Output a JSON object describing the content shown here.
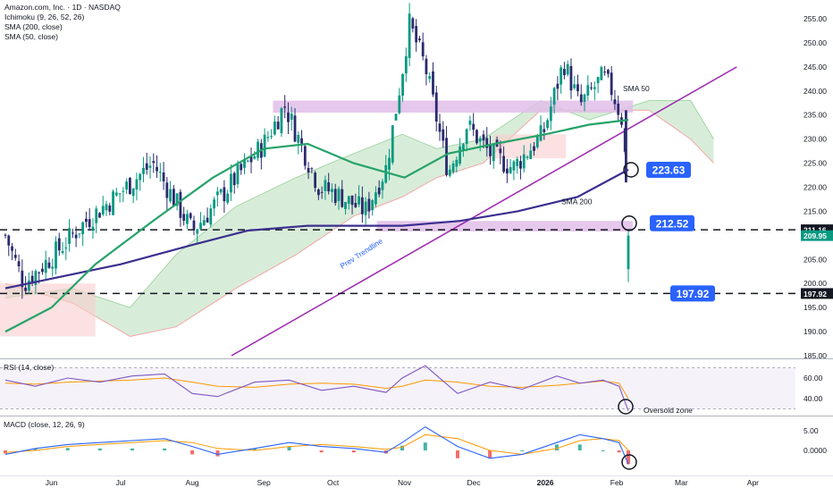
{
  "legend": {
    "symbol": "Amazon.com, Inc. · 1D · NASDAQ",
    "ichimoku": "Ichimoku (9, 26, 52, 26)",
    "sma200": "SMA (200, close)",
    "sma50": "SMA (50, close)"
  },
  "colors": {
    "up": "#089981",
    "down": "#2a2a6e",
    "sma50": "#26a269",
    "sma200": "#3b2f8f",
    "trendline": "#9c27b0",
    "zone": "#e1bee7",
    "cloud_green": "#c8e6c9",
    "cloud_red": "#f8cdcd",
    "callout": "#2962ff",
    "rsi": "#7e57c2",
    "signal": "#ff9800",
    "macd": "#2962ff"
  },
  "annotations": {
    "label_223": "223.63",
    "label_212": "212.52",
    "label_197": "197.92",
    "sma50_label": "SMA 50",
    "sma200_label": "SMA 200",
    "trendline_label": "Prev Trendline",
    "oversold_label": "Oversold zone",
    "rsi_title": "RSI (14, close)",
    "macd_title": "MACD (close, 12, 26, 9)"
  },
  "price_badges": {
    "top": "211.16",
    "current": "209.95",
    "bottom": "197.92"
  },
  "chart_data": [
    {
      "type": "candlestick",
      "title": "Amazon.com, Inc. · 1D · NASDAQ",
      "ylim": [
        185,
        257
      ],
      "y_ticks": [
        "255.00",
        "250.00",
        "245.00",
        "240.00",
        "235.00",
        "230.00",
        "225.00",
        "220.00",
        "215.00",
        "210.00",
        "205.00",
        "200.00",
        "195.00",
        "190.00",
        "185.00"
      ],
      "x_ticks": [
        "Jun",
        "Jul",
        "Aug",
        "Sep",
        "Oct",
        "Nov",
        "Dec",
        "2026",
        "Feb",
        "Mar",
        "Apr"
      ],
      "x_tick_values": [
        "2025-06-01",
        "2025-07-01",
        "2025-08-01",
        "2025-09-01",
        "2025-10-01",
        "2025-11-01",
        "2025-12-01",
        "2026-01-01",
        "2026-02-01",
        "2026-03-01",
        "2026-04-01"
      ],
      "anchor_dates": [
        "2025-05-12",
        "2025-05-20",
        "2025-06-02",
        "2025-06-16",
        "2025-07-01",
        "2025-07-15",
        "2025-08-01",
        "2025-08-05",
        "2025-08-20",
        "2025-09-01",
        "2025-09-10",
        "2025-09-25",
        "2025-10-01",
        "2025-10-15",
        "2025-10-24",
        "2025-10-31",
        "2025-11-03",
        "2025-11-10",
        "2025-11-20",
        "2025-11-28",
        "2025-12-08",
        "2025-12-18",
        "2025-12-31",
        "2026-01-09",
        "2026-01-16",
        "2026-01-26",
        "2026-01-30",
        "2026-02-04",
        "2026-02-06"
      ],
      "anchor_closes": [
        210,
        200,
        206,
        213,
        219,
        225,
        211,
        213,
        222,
        229,
        237,
        220,
        219,
        215,
        224,
        244,
        254,
        245,
        223,
        233,
        227,
        224,
        231,
        246,
        237,
        243,
        240,
        233,
        209.95
      ],
      "last_bar": {
        "date": "2026-02-06",
        "open": 203,
        "high": 211.2,
        "low": 200.3,
        "close": 209.95
      },
      "sma50": {
        "dates": [
          "2025-05-12",
          "2025-06-01",
          "2025-06-20",
          "2025-07-15",
          "2025-08-10",
          "2025-09-01",
          "2025-09-20",
          "2025-10-10",
          "2025-11-01",
          "2025-11-20",
          "2025-12-10",
          "2026-01-01",
          "2026-01-20",
          "2026-02-06"
        ],
        "values": [
          190,
          195,
          204,
          213,
          222,
          228,
          229,
          225,
          222,
          227,
          229,
          231,
          233,
          234
        ]
      },
      "sma200": {
        "dates": [
          "2025-05-12",
          "2025-06-01",
          "2025-07-01",
          "2025-08-01",
          "2025-08-25",
          "2025-09-20",
          "2025-10-10",
          "2025-10-31",
          "2025-11-25",
          "2025-12-20",
          "2026-01-15",
          "2026-02-06"
        ],
        "values": [
          199,
          201,
          204,
          208,
          211,
          212,
          212,
          212,
          213,
          215,
          218,
          223.63
        ]
      },
      "ichimoku_cloud": {
        "dates": [
          "2025-05-12",
          "2025-06-10",
          "2025-07-05",
          "2025-07-25",
          "2025-08-20",
          "2025-09-15",
          "2025-10-10",
          "2025-10-31",
          "2025-11-15",
          "2025-12-05",
          "2025-12-30",
          "2026-01-20",
          "2026-02-15",
          "2026-03-05",
          "2026-03-15"
        ],
        "span_a": [
          197,
          199,
          195,
          206,
          216,
          222,
          227,
          231,
          228,
          230,
          238,
          234,
          238,
          238,
          230
        ],
        "span_b": [
          200,
          196,
          189,
          191,
          199,
          206,
          214,
          218,
          222,
          225,
          236,
          236,
          236,
          230,
          225
        ]
      },
      "trendline": {
        "start": {
          "date": "2025-08-18",
          "value": 185
        },
        "end": {
          "date": "2026-03-25",
          "value": 245
        }
      },
      "zones": [
        {
          "date_from": "2025-09-05",
          "date_to": "2026-02-08",
          "from": 235.5,
          "to": 238
        },
        {
          "date_from": "2025-10-20",
          "date_to": "2026-02-08",
          "from": 210.8,
          "to": 213
        }
      ],
      "levels": [
        211.16,
        197.92
      ],
      "callouts": [
        223.63,
        212.52,
        197.92
      ],
      "sma50_label_at": 240,
      "sma200_label_at": 216.5,
      "trendline_label_at": 203
    },
    {
      "type": "line",
      "title": "RSI (14, close)",
      "ylim": [
        25,
        75
      ],
      "y_ticks": [
        "60.00",
        "40.00"
      ],
      "bands": [
        70,
        30
      ],
      "dates": [
        "2025-05-12",
        "2025-05-25",
        "2025-06-08",
        "2025-06-22",
        "2025-07-06",
        "2025-07-20",
        "2025-08-01",
        "2025-08-12",
        "2025-08-28",
        "2025-09-12",
        "2025-09-26",
        "2025-10-10",
        "2025-10-24",
        "2025-10-31",
        "2025-11-10",
        "2025-11-24",
        "2025-12-08",
        "2025-12-22",
        "2026-01-06",
        "2026-01-16",
        "2026-01-26",
        "2026-02-02",
        "2026-02-06"
      ],
      "rsi": [
        58,
        52,
        60,
        56,
        62,
        64,
        45,
        42,
        56,
        58,
        48,
        52,
        46,
        60,
        72,
        45,
        56,
        49,
        62,
        55,
        58,
        52,
        28
      ],
      "signal": [
        55,
        54,
        56,
        57,
        58,
        60,
        56,
        52,
        51,
        54,
        55,
        54,
        50,
        52,
        58,
        56,
        52,
        51,
        53,
        55,
        57,
        55,
        40
      ]
    },
    {
      "type": "bar",
      "title": "MACD (close, 12, 26, 9)",
      "ylim": [
        -4.5,
        7.5
      ],
      "y_ticks": [
        "5.00",
        "0.0000"
      ],
      "dates": [
        "2025-05-12",
        "2025-05-25",
        "2025-06-08",
        "2025-06-22",
        "2025-07-06",
        "2025-07-20",
        "2025-08-01",
        "2025-08-12",
        "2025-08-28",
        "2025-09-12",
        "2025-09-26",
        "2025-10-10",
        "2025-10-24",
        "2025-10-31",
        "2025-11-10",
        "2025-11-24",
        "2025-12-08",
        "2025-12-22",
        "2026-01-06",
        "2026-01-16",
        "2026-01-26",
        "2026-02-02",
        "2026-02-06"
      ],
      "macd": [
        -1,
        0.5,
        1.5,
        2,
        2.5,
        3,
        1,
        -1,
        0.5,
        2,
        1,
        0.5,
        -0.5,
        2,
        6,
        1,
        -2,
        -1,
        2,
        4,
        3,
        2,
        -3.5
      ],
      "signal": [
        -0.5,
        0,
        1,
        1.5,
        2,
        2.5,
        2,
        0.5,
        0,
        1,
        1.5,
        1,
        0.3,
        0.8,
        4,
        3,
        0,
        -1,
        0.5,
        2.5,
        3,
        2.5,
        0
      ],
      "histogram": [
        -0.8,
        0.5,
        0.6,
        0.5,
        0.5,
        0.5,
        -1,
        -1.5,
        0.5,
        1,
        -0.5,
        -0.5,
        -0.8,
        1.2,
        2,
        -2,
        -2,
        0,
        1.5,
        1.5,
        0,
        -0.5,
        -3.5
      ]
    }
  ]
}
